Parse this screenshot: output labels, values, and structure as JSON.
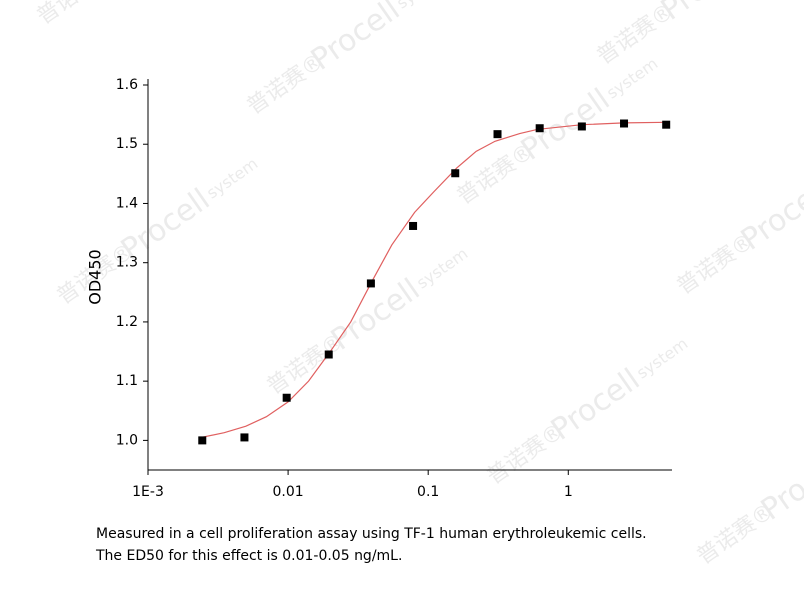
{
  "chart_data": {
    "type": "scatter",
    "y_label": "OD450",
    "xscale": "log",
    "xlim": [
      0.001,
      5.5
    ],
    "ylim": [
      0.95,
      1.6
    ],
    "xticks": [
      {
        "value": 0.001,
        "label": "1E-3"
      },
      0.01,
      0.1,
      1
    ],
    "yticks": [
      {
        "value": 1,
        "label": "1.0"
      },
      1.1,
      1.2,
      1.3,
      1.4,
      1.5,
      1.6
    ],
    "series": [
      {
        "color": "#000000",
        "x": [
          0.00244,
          0.00488,
          0.00977,
          0.0195,
          0.039,
          0.078,
          0.156,
          0.3125,
          0.625,
          1.25,
          2.5,
          5
        ],
        "values": [
          1.0,
          1.005,
          1.072,
          1.145,
          1.265,
          1.362,
          1.451,
          1.517,
          1.527,
          1.53,
          1.535,
          1.533
        ]
      },
      {
        "color": "#e06060",
        "line": true,
        "x": [
          0.0024,
          0.0035,
          0.005,
          0.007,
          0.01,
          0.014,
          0.02,
          0.028,
          0.04,
          0.055,
          0.08,
          0.11,
          0.16,
          0.22,
          0.3,
          0.45,
          0.6,
          1.25,
          2.5,
          5
        ],
        "values": [
          1.005,
          1.013,
          1.024,
          1.04,
          1.065,
          1.1,
          1.15,
          1.2,
          1.27,
          1.33,
          1.385,
          1.42,
          1.46,
          1.488,
          1.505,
          1.518,
          1.525,
          1.533,
          1.536,
          1.537
        ]
      }
    ],
    "caption": [
      "Measured in a cell proliferation assay using TF-1 human erythroleukemic cells.",
      "The ED50 for this effect is 0.01-0.05 ng/mL."
    ],
    "watermark": [
      "普诺赛®",
      "Procell",
      "system"
    ]
  }
}
